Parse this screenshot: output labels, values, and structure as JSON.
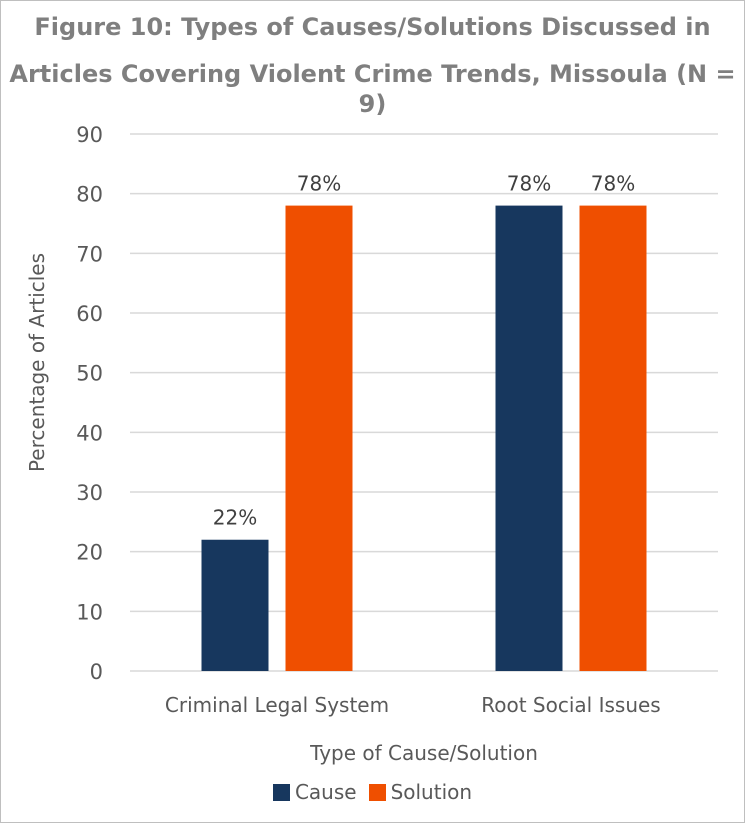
{
  "chart_data": {
    "type": "bar",
    "title_line1": "Figure 10: Types of Causes/Solutions Discussed in",
    "title_line2": "Articles Covering Violent Crime Trends, Missoula (N = 9)",
    "categories": [
      "Criminal Legal System",
      "Root Social Issues"
    ],
    "series": [
      {
        "name": "Cause",
        "values": [
          22,
          78
        ],
        "labels": [
          "22%",
          "78%"
        ],
        "color": "#17375e"
      },
      {
        "name": "Solution",
        "values": [
          78,
          78
        ],
        "labels": [
          "78%",
          "78%"
        ],
        "color": "#ef4f00"
      }
    ],
    "xlabel": "Type of Cause/Solution",
    "ylabel": "Percentage of Articles",
    "ylim": [
      0,
      90
    ],
    "yticks": [
      0,
      10,
      20,
      30,
      40,
      50,
      60,
      70,
      80,
      90
    ],
    "grid": true,
    "gridline_color": "#d9d9d9",
    "legend_position": "bottom"
  }
}
